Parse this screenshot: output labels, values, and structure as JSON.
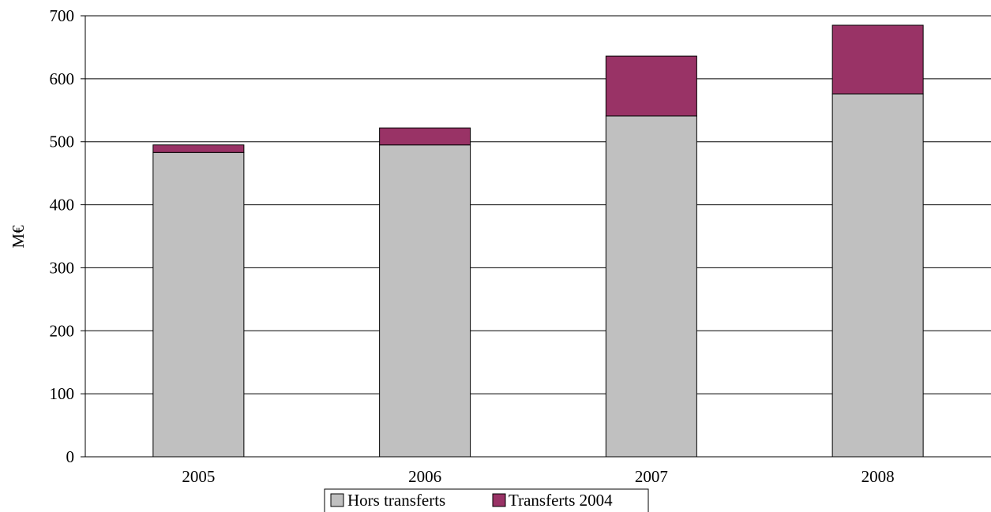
{
  "chart_data": {
    "type": "bar",
    "stacked": true,
    "categories": [
      "2005",
      "2006",
      "2007",
      "2008"
    ],
    "series": [
      {
        "name": "Hors transferts",
        "values": [
          483,
          495,
          541,
          576
        ],
        "color": "#c0c0c0"
      },
      {
        "name": "Transferts 2004",
        "values": [
          12,
          27,
          95,
          109
        ],
        "color": "#993366"
      }
    ],
    "title": "",
    "xlabel": "",
    "ylabel": "M€",
    "ylim": [
      0,
      700
    ],
    "yticks": [
      0,
      100,
      200,
      300,
      400,
      500,
      600,
      700
    ],
    "grid": true,
    "legend_position": "bottom"
  }
}
